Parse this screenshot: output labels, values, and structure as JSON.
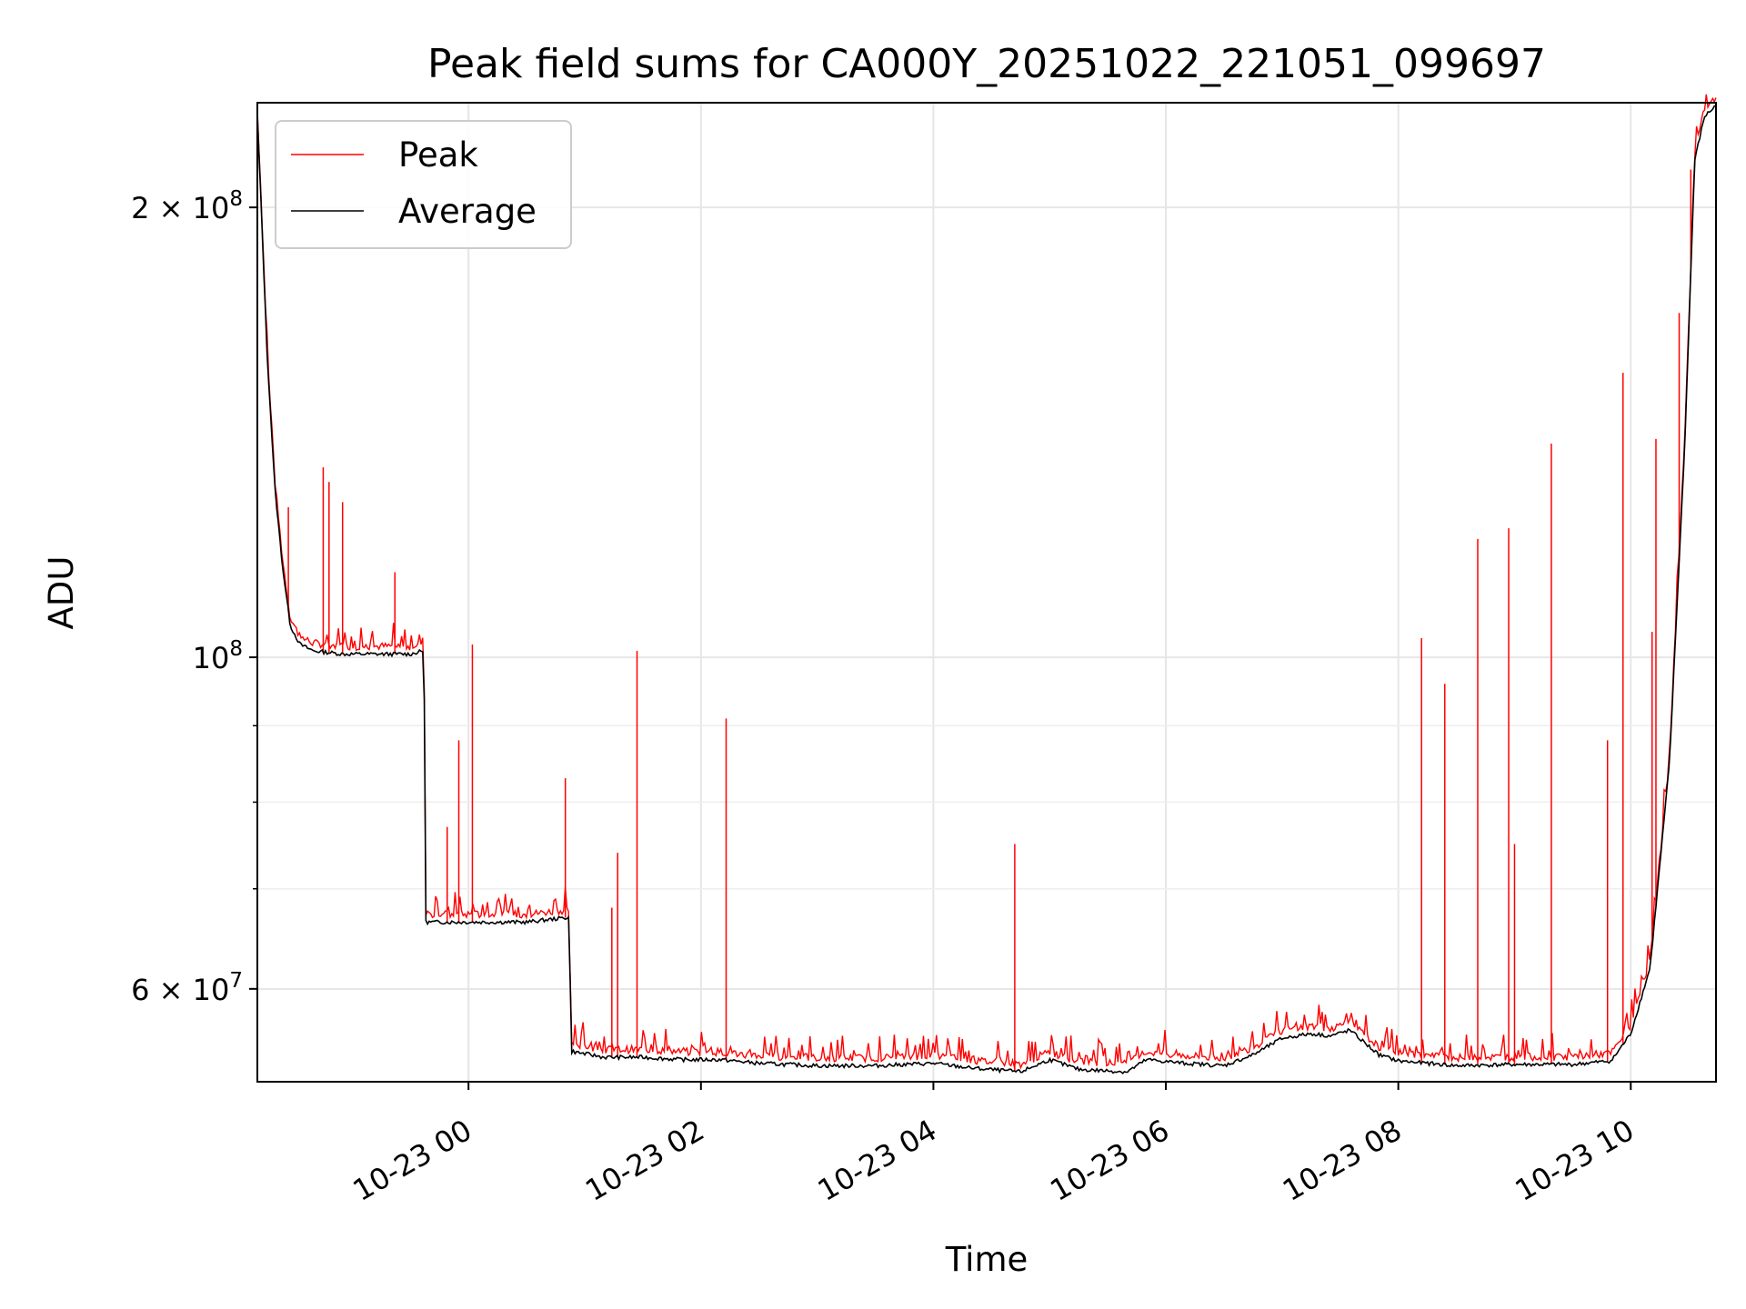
{
  "chart_data": {
    "type": "line",
    "title": "Peak field sums for CA000Y_20251022_221051_099697",
    "xlabel": "Time",
    "ylabel": "ADU",
    "yscale": "log",
    "ylim": [
      52000000,
      235000000
    ],
    "xlim": [
      "2025-10-22 22:11",
      "2025-10-23 10:44"
    ],
    "grid": true,
    "legend_position": "upper-left",
    "x_ticks": [
      {
        "value": "2025-10-23 00:00",
        "label": "10-23 00"
      },
      {
        "value": "2025-10-23 02:00",
        "label": "10-23 02"
      },
      {
        "value": "2025-10-23 04:00",
        "label": "10-23 04"
      },
      {
        "value": "2025-10-23 06:00",
        "label": "10-23 06"
      },
      {
        "value": "2025-10-23 08:00",
        "label": "10-23 08"
      },
      {
        "value": "2025-10-23 10:00",
        "label": "10-23 10"
      }
    ],
    "y_ticks_major": [
      {
        "value": 60000000,
        "label_base": "6 × 10",
        "label_exp": "7"
      },
      {
        "value": 100000000,
        "label_base": "10",
        "label_exp": "8"
      },
      {
        "value": 200000000,
        "label_base": "2 × 10",
        "label_exp": "8"
      }
    ],
    "y_ticks_minor": [
      70000000,
      80000000,
      90000000
    ],
    "colors": {
      "peak": "#ff0000",
      "average": "#000000"
    },
    "series": [
      {
        "name": "Average",
        "color": "#000000",
        "x": [
          "2025-10-22 22:11",
          "2025-10-22 22:13",
          "2025-10-22 22:16",
          "2025-10-22 22:20",
          "2025-10-22 22:24",
          "2025-10-22 22:28",
          "2025-10-22 22:33",
          "2025-10-22 22:40",
          "2025-10-22 22:55",
          "2025-10-22 23:10",
          "2025-10-22 23:30",
          "2025-10-22 23:37",
          "2025-10-22 23:38",
          "2025-10-22 23:45",
          "2025-10-23 00:00",
          "2025-10-23 00:30",
          "2025-10-23 00:52",
          "2025-10-23 00:53",
          "2025-10-23 01:10",
          "2025-10-23 01:30",
          "2025-10-23 01:50",
          "2025-10-23 02:10",
          "2025-10-23 02:30",
          "2025-10-23 03:00",
          "2025-10-23 03:30",
          "2025-10-23 04:00",
          "2025-10-23 04:20",
          "2025-10-23 04:45",
          "2025-10-23 05:00",
          "2025-10-23 05:15",
          "2025-10-23 05:40",
          "2025-10-23 05:50",
          "2025-10-23 06:10",
          "2025-10-23 06:30",
          "2025-10-23 06:45",
          "2025-10-23 07:00",
          "2025-10-23 07:15",
          "2025-10-23 07:25",
          "2025-10-23 07:35",
          "2025-10-23 07:50",
          "2025-10-23 08:00",
          "2025-10-23 08:30",
          "2025-10-23 09:00",
          "2025-10-23 09:30",
          "2025-10-23 09:50",
          "2025-10-23 10:00",
          "2025-10-23 10:10",
          "2025-10-23 10:20",
          "2025-10-23 10:28",
          "2025-10-23 10:33",
          "2025-10-23 10:38",
          "2025-10-23 10:44"
        ],
        "y": [
          230000000,
          200000000,
          160000000,
          130000000,
          115000000,
          105000000,
          102000000,
          101000000,
          100500000,
          100500000,
          100500000,
          101000000,
          66500000,
          66500000,
          66500000,
          66500000,
          67000000,
          54500000,
          54000000,
          54000000,
          53800000,
          53800000,
          53500000,
          53300000,
          53300000,
          53500000,
          53100000,
          52800000,
          53800000,
          53000000,
          52800000,
          53800000,
          53500000,
          53300000,
          54200000,
          55600000,
          56000000,
          55800000,
          56300000,
          54200000,
          53700000,
          53300000,
          53400000,
          53400000,
          53700000,
          56000000,
          62000000,
          85000000,
          140000000,
          215000000,
          230000000,
          234000000
        ]
      },
      {
        "name": "Peak",
        "color": "#ff0000",
        "spikes": [
          {
            "x": "2025-10-22 22:27",
            "y": 126000000
          },
          {
            "x": "2025-10-22 22:45",
            "y": 134000000
          },
          {
            "x": "2025-10-22 22:48",
            "y": 131000000
          },
          {
            "x": "2025-10-22 22:55",
            "y": 127000000
          },
          {
            "x": "2025-10-22 23:22",
            "y": 114000000
          },
          {
            "x": "2025-10-22 23:49",
            "y": 77000000
          },
          {
            "x": "2025-10-22 23:55",
            "y": 88000000
          },
          {
            "x": "2025-10-23 00:02",
            "y": 102000000
          },
          {
            "x": "2025-10-23 00:50",
            "y": 83000000
          },
          {
            "x": "2025-10-23 01:14",
            "y": 68000000
          },
          {
            "x": "2025-10-23 01:17",
            "y": 74000000
          },
          {
            "x": "2025-10-23 01:27",
            "y": 101000000
          },
          {
            "x": "2025-10-23 02:13",
            "y": 91000000
          },
          {
            "x": "2025-10-23 04:42",
            "y": 75000000
          },
          {
            "x": "2025-10-23 08:12",
            "y": 103000000
          },
          {
            "x": "2025-10-23 08:24",
            "y": 96000000
          },
          {
            "x": "2025-10-23 08:41",
            "y": 120000000
          },
          {
            "x": "2025-10-23 08:57",
            "y": 122000000
          },
          {
            "x": "2025-10-23 09:00",
            "y": 75000000
          },
          {
            "x": "2025-10-23 09:19",
            "y": 139000000
          },
          {
            "x": "2025-10-23 09:48",
            "y": 88000000
          },
          {
            "x": "2025-10-23 09:56",
            "y": 155000000
          },
          {
            "x": "2025-10-23 10:11",
            "y": 104000000
          },
          {
            "x": "2025-10-23 10:13",
            "y": 140000000
          },
          {
            "x": "2025-10-23 10:25",
            "y": 170000000
          },
          {
            "x": "2025-10-23 10:31",
            "y": 212000000
          }
        ]
      }
    ],
    "legend": [
      {
        "label": "Peak",
        "color": "#ff0000"
      },
      {
        "label": "Average",
        "color": "#000000"
      }
    ]
  }
}
